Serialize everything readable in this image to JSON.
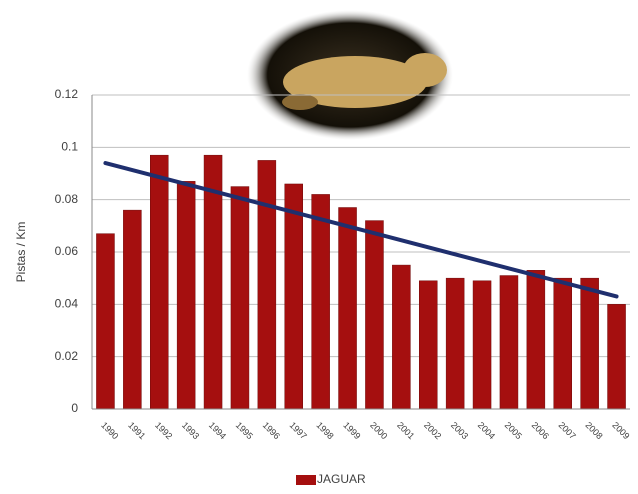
{
  "chart_data": {
    "type": "bar",
    "y_label": "Pistas / Km",
    "categories": [
      "1990",
      "1991",
      "1992",
      "1993",
      "1994",
      "1995",
      "1996",
      "1997",
      "1998",
      "1999",
      "2000",
      "2001",
      "2002",
      "2003",
      "2004",
      "2005",
      "2006",
      "2007",
      "2008",
      "2009"
    ],
    "series": [
      {
        "name": "JAGUAR",
        "color": "#a50f0f",
        "values": [
          0.067,
          0.076,
          0.097,
          0.087,
          0.097,
          0.085,
          0.095,
          0.086,
          0.082,
          0.077,
          0.072,
          0.055,
          0.049,
          0.05,
          0.049,
          0.051,
          0.053,
          0.05,
          0.05,
          0.04
        ]
      }
    ],
    "trendline": {
      "start": 0.094,
      "end": 0.043,
      "color": "#1f2f6e"
    },
    "ylim": [
      0,
      0.12
    ],
    "yticks": [
      0,
      0.02,
      0.04,
      0.06,
      0.08,
      0.1,
      0.12
    ],
    "grid": true
  }
}
